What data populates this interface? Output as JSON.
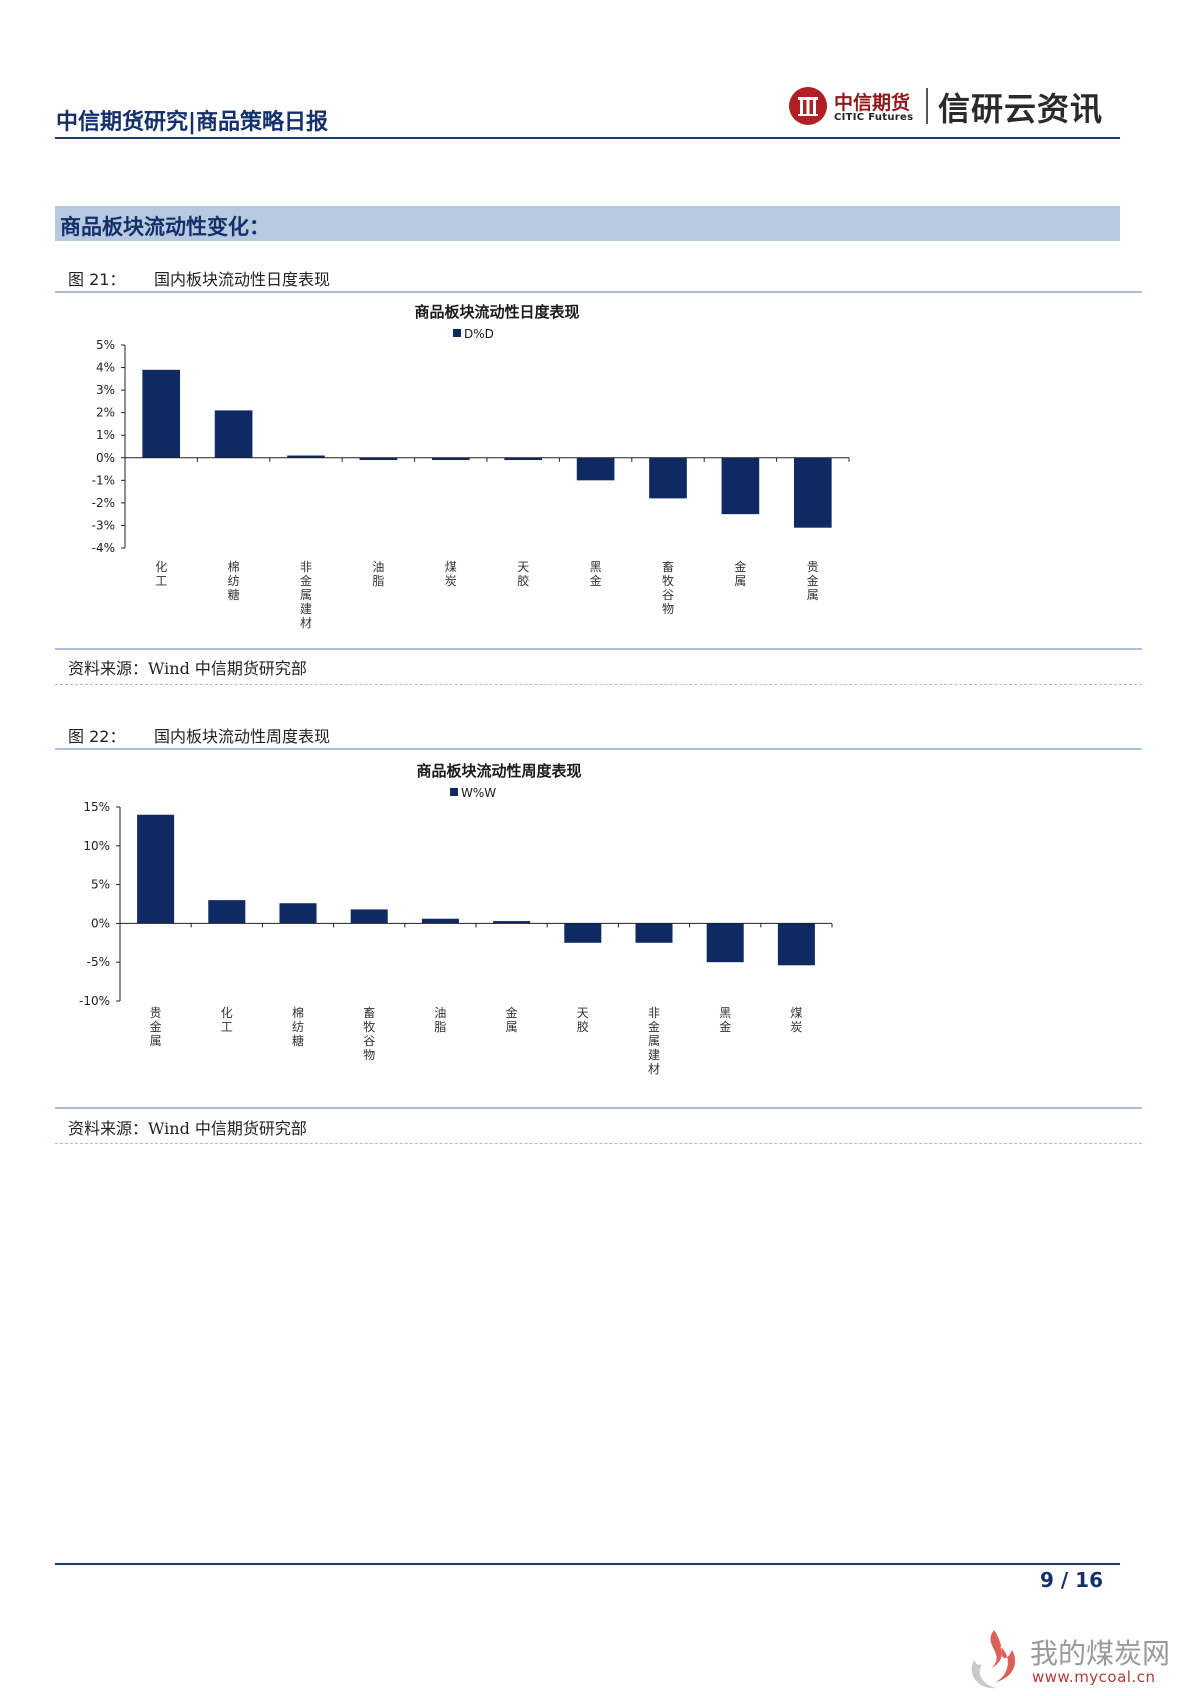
{
  "header": {
    "title": "中信期货研究|商品策略日报",
    "logo_cn": "中信期货",
    "logo_en": "CITIC Futures",
    "brand": "信研云资讯"
  },
  "section": {
    "title": "商品板块流动性变化："
  },
  "figures": [
    {
      "number": "图 21：",
      "caption": "国内板块流动性日度表现",
      "source": "资料来源：Wind 中信期货研究部"
    },
    {
      "number": "图 22：",
      "caption": "国内板块流动性周度表现",
      "source": "资料来源：Wind 中信期货研究部"
    }
  ],
  "chart_data": [
    {
      "type": "bar",
      "title": "商品板块流动性日度表现",
      "legend": "D%D",
      "categories": [
        "化工",
        "棉纺糖",
        "非金属建材",
        "油脂",
        "煤炭",
        "天胶",
        "黑金",
        "畜牧谷物",
        "金属",
        "贵金属"
      ],
      "series": [
        {
          "name": "D%D",
          "values": [
            3.9,
            2.1,
            0.1,
            -0.1,
            -0.1,
            -0.1,
            -1.0,
            -1.8,
            -2.5,
            -3.1
          ]
        }
      ],
      "ylim": [
        -4,
        5
      ],
      "yticks": [
        5,
        4,
        3,
        2,
        1,
        0,
        -1,
        -2,
        -3,
        -4
      ],
      "ytick_labels": [
        "5%",
        "4%",
        "3%",
        "2%",
        "1%",
        "0%",
        "-1%",
        "-2%",
        "-3%",
        "-4%"
      ],
      "color": "#0f2a63",
      "legend_position": "top-center",
      "grid": false
    },
    {
      "type": "bar",
      "title": "商品板块流动性周度表现",
      "legend": "W%W",
      "categories": [
        "贵金属",
        "化工",
        "棉纺糖",
        "畜牧谷物",
        "油脂",
        "金属",
        "天胶",
        "非金属建材",
        "黑金",
        "煤炭"
      ],
      "series": [
        {
          "name": "W%W",
          "values": [
            14.0,
            3.0,
            2.6,
            1.8,
            0.6,
            0.3,
            -2.5,
            -2.5,
            -5.0,
            -5.4
          ]
        }
      ],
      "ylim": [
        -10,
        15
      ],
      "yticks": [
        15,
        10,
        5,
        0,
        -5,
        -10
      ],
      "ytick_labels": [
        "15%",
        "10%",
        "5%",
        "0%",
        "-5%",
        "-10%"
      ],
      "color": "#0f2a63",
      "legend_position": "top-center",
      "grid": false
    }
  ],
  "footer": {
    "page": "9 / 16"
  },
  "watermark": {
    "text": "我的煤炭网",
    "url": "www.mycoal.cn"
  }
}
